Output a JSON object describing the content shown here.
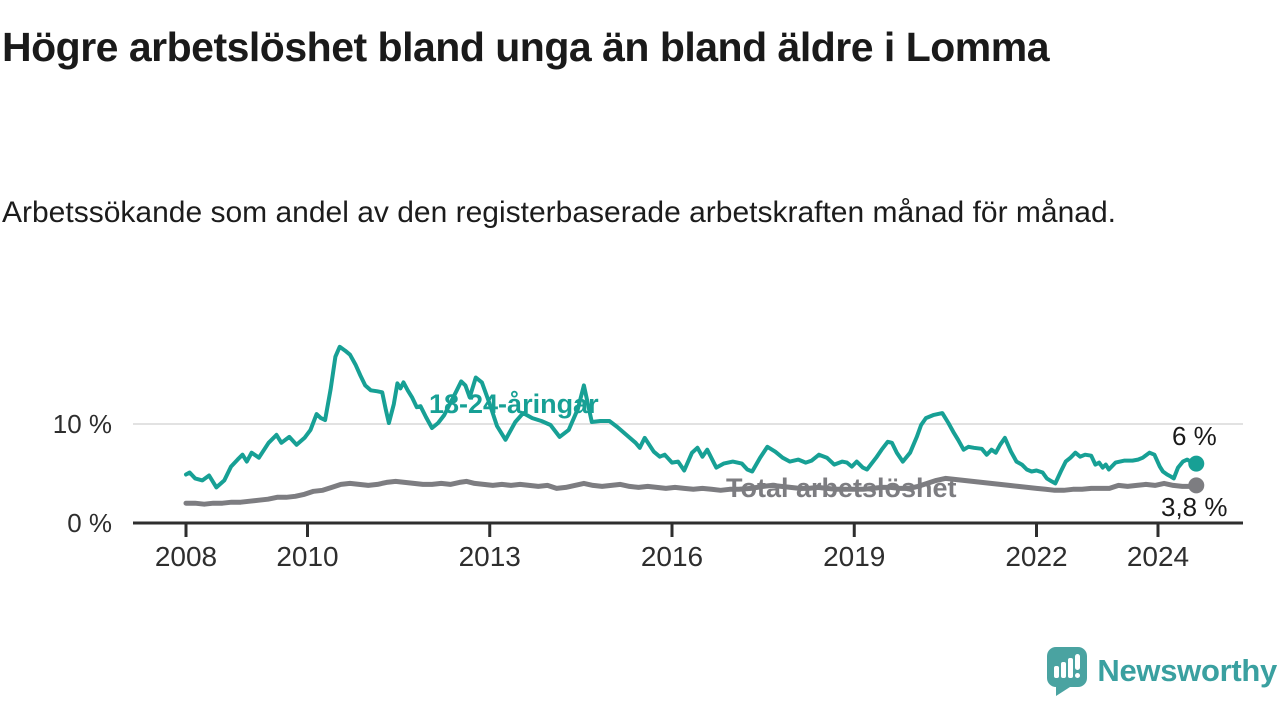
{
  "header": {
    "title": "Högre arbetslöshet bland unga än bland äldre i Lomma",
    "subtitle": "Arbetssökande som andel av den registerbaserade arbetskraften månad för månad."
  },
  "chart_data": {
    "type": "line",
    "unit": "%",
    "grid": "horizontal-10pct-only",
    "legend_position": "inline-labels-on-lines",
    "axis_color": "#2e2e2e",
    "gridline_color": "#d9d9d9",
    "xlim": [
      2007.1,
      2025.4
    ],
    "ylim": [
      0,
      19.2
    ],
    "x_ticks": [
      {
        "value": 2008,
        "label": "2008"
      },
      {
        "value": 2010,
        "label": "2010"
      },
      {
        "value": 2013,
        "label": "2013"
      },
      {
        "value": 2016,
        "label": "2016"
      },
      {
        "value": 2019,
        "label": "2019"
      },
      {
        "value": 2022,
        "label": "2022"
      },
      {
        "value": 2024,
        "label": "2024"
      }
    ],
    "y_ticks": [
      {
        "value": 0,
        "label": "0 %"
      },
      {
        "value": 10,
        "label": "10 %"
      }
    ],
    "series": [
      {
        "name": "Total arbetslöshet",
        "color": "#7d7d81",
        "end_label": "3,8 %",
        "end_value": 3.8,
        "points": [
          [
            2008.0,
            2.0
          ],
          [
            2008.15,
            2.0
          ],
          [
            2008.3,
            1.9
          ],
          [
            2008.45,
            2.0
          ],
          [
            2008.6,
            2.0
          ],
          [
            2008.75,
            2.1
          ],
          [
            2008.9,
            2.1
          ],
          [
            2009.05,
            2.2
          ],
          [
            2009.2,
            2.3
          ],
          [
            2009.35,
            2.4
          ],
          [
            2009.5,
            2.6
          ],
          [
            2009.65,
            2.6
          ],
          [
            2009.8,
            2.7
          ],
          [
            2009.95,
            2.9
          ],
          [
            2010.1,
            3.2
          ],
          [
            2010.25,
            3.3
          ],
          [
            2010.4,
            3.6
          ],
          [
            2010.55,
            3.9
          ],
          [
            2010.7,
            4.0
          ],
          [
            2010.85,
            3.9
          ],
          [
            2011.0,
            3.8
          ],
          [
            2011.15,
            3.9
          ],
          [
            2011.3,
            4.1
          ],
          [
            2011.45,
            4.2
          ],
          [
            2011.6,
            4.1
          ],
          [
            2011.75,
            4.0
          ],
          [
            2011.9,
            3.9
          ],
          [
            2012.05,
            3.9
          ],
          [
            2012.2,
            4.0
          ],
          [
            2012.35,
            3.9
          ],
          [
            2012.5,
            4.1
          ],
          [
            2012.62,
            4.2
          ],
          [
            2012.75,
            4.0
          ],
          [
            2012.9,
            3.9
          ],
          [
            2013.05,
            3.8
          ],
          [
            2013.2,
            3.9
          ],
          [
            2013.35,
            3.8
          ],
          [
            2013.5,
            3.9
          ],
          [
            2013.65,
            3.8
          ],
          [
            2013.8,
            3.7
          ],
          [
            2013.95,
            3.8
          ],
          [
            2014.1,
            3.5
          ],
          [
            2014.25,
            3.6
          ],
          [
            2014.4,
            3.8
          ],
          [
            2014.55,
            4.0
          ],
          [
            2014.7,
            3.8
          ],
          [
            2014.85,
            3.7
          ],
          [
            2015.0,
            3.8
          ],
          [
            2015.15,
            3.9
          ],
          [
            2015.3,
            3.7
          ],
          [
            2015.45,
            3.6
          ],
          [
            2015.6,
            3.7
          ],
          [
            2015.75,
            3.6
          ],
          [
            2015.9,
            3.5
          ],
          [
            2016.05,
            3.6
          ],
          [
            2016.2,
            3.5
          ],
          [
            2016.35,
            3.4
          ],
          [
            2016.5,
            3.5
          ],
          [
            2016.65,
            3.4
          ],
          [
            2016.8,
            3.3
          ],
          [
            2016.95,
            3.4
          ],
          [
            2017.1,
            3.4
          ],
          [
            2017.3,
            3.5
          ],
          [
            2017.5,
            3.7
          ],
          [
            2017.65,
            3.8
          ],
          [
            2017.8,
            3.7
          ],
          [
            2017.95,
            3.6
          ],
          [
            2018.1,
            3.5
          ],
          [
            2018.25,
            3.5
          ],
          [
            2018.4,
            3.6
          ],
          [
            2018.55,
            3.5
          ],
          [
            2018.7,
            3.4
          ],
          [
            2018.85,
            3.4
          ],
          [
            2019.0,
            3.4
          ],
          [
            2019.15,
            3.4
          ],
          [
            2019.3,
            3.5
          ],
          [
            2019.45,
            3.6
          ],
          [
            2019.6,
            3.6
          ],
          [
            2019.75,
            3.5
          ],
          [
            2019.9,
            3.5
          ],
          [
            2020.05,
            3.7
          ],
          [
            2020.2,
            4.0
          ],
          [
            2020.35,
            4.3
          ],
          [
            2020.5,
            4.5
          ],
          [
            2020.65,
            4.4
          ],
          [
            2020.8,
            4.3
          ],
          [
            2020.95,
            4.2
          ],
          [
            2021.1,
            4.1
          ],
          [
            2021.25,
            4.0
          ],
          [
            2021.4,
            3.9
          ],
          [
            2021.55,
            3.8
          ],
          [
            2021.7,
            3.7
          ],
          [
            2021.85,
            3.6
          ],
          [
            2022.0,
            3.5
          ],
          [
            2022.15,
            3.4
          ],
          [
            2022.3,
            3.3
          ],
          [
            2022.45,
            3.3
          ],
          [
            2022.6,
            3.4
          ],
          [
            2022.75,
            3.4
          ],
          [
            2022.9,
            3.5
          ],
          [
            2023.05,
            3.5
          ],
          [
            2023.2,
            3.5
          ],
          [
            2023.35,
            3.8
          ],
          [
            2023.5,
            3.7
          ],
          [
            2023.65,
            3.8
          ],
          [
            2023.8,
            3.9
          ],
          [
            2023.95,
            3.8
          ],
          [
            2024.1,
            4.0
          ],
          [
            2024.25,
            3.8
          ],
          [
            2024.4,
            3.7
          ],
          [
            2024.52,
            3.7
          ],
          [
            2024.63,
            3.8
          ]
        ]
      },
      {
        "name": "18-24-åringar",
        "color": "#17a095",
        "end_label": "6 %",
        "end_value": 6.0,
        "points": [
          [
            2008.0,
            4.9
          ],
          [
            2008.06,
            5.1
          ],
          [
            2008.15,
            4.5
          ],
          [
            2008.27,
            4.3
          ],
          [
            2008.38,
            4.8
          ],
          [
            2008.5,
            3.6
          ],
          [
            2008.63,
            4.3
          ],
          [
            2008.74,
            5.7
          ],
          [
            2008.85,
            6.4
          ],
          [
            2008.93,
            6.9
          ],
          [
            2009.0,
            6.2
          ],
          [
            2009.08,
            7.1
          ],
          [
            2009.2,
            6.6
          ],
          [
            2009.36,
            8.1
          ],
          [
            2009.49,
            8.9
          ],
          [
            2009.57,
            8.1
          ],
          [
            2009.7,
            8.7
          ],
          [
            2009.82,
            7.9
          ],
          [
            2009.95,
            8.6
          ],
          [
            2010.05,
            9.4
          ],
          [
            2010.15,
            11.0
          ],
          [
            2010.22,
            10.6
          ],
          [
            2010.29,
            10.4
          ],
          [
            2010.38,
            13.5
          ],
          [
            2010.46,
            16.8
          ],
          [
            2010.53,
            17.8
          ],
          [
            2010.62,
            17.4
          ],
          [
            2010.7,
            17.0
          ],
          [
            2010.79,
            16.0
          ],
          [
            2010.87,
            14.9
          ],
          [
            2010.95,
            13.9
          ],
          [
            2011.04,
            13.4
          ],
          [
            2011.15,
            13.3
          ],
          [
            2011.23,
            13.2
          ],
          [
            2011.29,
            11.4
          ],
          [
            2011.34,
            10.1
          ],
          [
            2011.42,
            12.0
          ],
          [
            2011.48,
            14.1
          ],
          [
            2011.53,
            13.6
          ],
          [
            2011.58,
            14.2
          ],
          [
            2011.65,
            13.4
          ],
          [
            2011.72,
            12.7
          ],
          [
            2011.8,
            11.7
          ],
          [
            2011.86,
            11.8
          ],
          [
            2011.95,
            10.7
          ],
          [
            2012.05,
            9.6
          ],
          [
            2012.15,
            10.1
          ],
          [
            2012.25,
            10.9
          ],
          [
            2012.35,
            12.1
          ],
          [
            2012.45,
            13.3
          ],
          [
            2012.53,
            14.3
          ],
          [
            2012.6,
            13.9
          ],
          [
            2012.67,
            12.7
          ],
          [
            2012.77,
            14.7
          ],
          [
            2012.87,
            14.2
          ],
          [
            2013.0,
            12.0
          ],
          [
            2013.12,
            9.8
          ],
          [
            2013.26,
            8.4
          ],
          [
            2013.42,
            10.2
          ],
          [
            2013.55,
            11.1
          ],
          [
            2013.7,
            10.6
          ],
          [
            2013.85,
            10.3
          ],
          [
            2014.0,
            9.9
          ],
          [
            2014.15,
            8.7
          ],
          [
            2014.3,
            9.4
          ],
          [
            2014.45,
            11.5
          ],
          [
            2014.55,
            13.9
          ],
          [
            2014.68,
            10.2
          ],
          [
            2014.82,
            10.3
          ],
          [
            2014.97,
            10.3
          ],
          [
            2015.1,
            9.7
          ],
          [
            2015.25,
            8.9
          ],
          [
            2015.4,
            8.1
          ],
          [
            2015.47,
            7.6
          ],
          [
            2015.55,
            8.6
          ],
          [
            2015.7,
            7.2
          ],
          [
            2015.8,
            6.7
          ],
          [
            2015.88,
            6.9
          ],
          [
            2016.0,
            6.1
          ],
          [
            2016.1,
            6.2
          ],
          [
            2016.2,
            5.3
          ],
          [
            2016.33,
            7.1
          ],
          [
            2016.42,
            7.6
          ],
          [
            2016.5,
            6.7
          ],
          [
            2016.58,
            7.4
          ],
          [
            2016.73,
            5.6
          ],
          [
            2016.85,
            6.0
          ],
          [
            2017.0,
            6.2
          ],
          [
            2017.15,
            6.0
          ],
          [
            2017.24,
            5.4
          ],
          [
            2017.32,
            5.2
          ],
          [
            2017.45,
            6.6
          ],
          [
            2017.57,
            7.7
          ],
          [
            2017.7,
            7.2
          ],
          [
            2017.82,
            6.6
          ],
          [
            2017.94,
            6.2
          ],
          [
            2018.08,
            6.4
          ],
          [
            2018.2,
            6.1
          ],
          [
            2018.3,
            6.3
          ],
          [
            2018.42,
            6.9
          ],
          [
            2018.55,
            6.6
          ],
          [
            2018.67,
            5.9
          ],
          [
            2018.8,
            6.2
          ],
          [
            2018.88,
            6.1
          ],
          [
            2018.96,
            5.7
          ],
          [
            2019.04,
            6.2
          ],
          [
            2019.14,
            5.6
          ],
          [
            2019.21,
            5.4
          ],
          [
            2019.36,
            6.6
          ],
          [
            2019.45,
            7.4
          ],
          [
            2019.55,
            8.2
          ],
          [
            2019.62,
            8.1
          ],
          [
            2019.7,
            7.1
          ],
          [
            2019.8,
            6.2
          ],
          [
            2019.92,
            7.1
          ],
          [
            2020.03,
            8.7
          ],
          [
            2020.1,
            9.9
          ],
          [
            2020.18,
            10.6
          ],
          [
            2020.3,
            10.9
          ],
          [
            2020.45,
            11.1
          ],
          [
            2020.55,
            10.1
          ],
          [
            2020.63,
            9.2
          ],
          [
            2020.71,
            8.4
          ],
          [
            2020.8,
            7.4
          ],
          [
            2020.88,
            7.7
          ],
          [
            2020.97,
            7.6
          ],
          [
            2021.1,
            7.5
          ],
          [
            2021.18,
            6.9
          ],
          [
            2021.26,
            7.4
          ],
          [
            2021.33,
            7.1
          ],
          [
            2021.4,
            7.9
          ],
          [
            2021.48,
            8.6
          ],
          [
            2021.58,
            7.2
          ],
          [
            2021.67,
            6.2
          ],
          [
            2021.76,
            5.9
          ],
          [
            2021.84,
            5.4
          ],
          [
            2021.92,
            5.2
          ],
          [
            2022.0,
            5.3
          ],
          [
            2022.1,
            5.1
          ],
          [
            2022.17,
            4.5
          ],
          [
            2022.25,
            4.2
          ],
          [
            2022.31,
            4.0
          ],
          [
            2022.4,
            5.2
          ],
          [
            2022.48,
            6.2
          ],
          [
            2022.56,
            6.6
          ],
          [
            2022.64,
            7.1
          ],
          [
            2022.72,
            6.7
          ],
          [
            2022.8,
            6.9
          ],
          [
            2022.9,
            6.8
          ],
          [
            2022.97,
            5.9
          ],
          [
            2023.03,
            6.1
          ],
          [
            2023.09,
            5.6
          ],
          [
            2023.14,
            5.9
          ],
          [
            2023.19,
            5.4
          ],
          [
            2023.3,
            6.1
          ],
          [
            2023.45,
            6.3
          ],
          [
            2023.58,
            6.3
          ],
          [
            2023.67,
            6.4
          ],
          [
            2023.75,
            6.6
          ],
          [
            2023.86,
            7.1
          ],
          [
            2023.94,
            6.9
          ],
          [
            2024.03,
            5.7
          ],
          [
            2024.08,
            5.2
          ],
          [
            2024.15,
            4.9
          ],
          [
            2024.21,
            4.7
          ],
          [
            2024.26,
            4.5
          ],
          [
            2024.33,
            5.6
          ],
          [
            2024.41,
            6.2
          ],
          [
            2024.48,
            6.4
          ],
          [
            2024.56,
            6.1
          ],
          [
            2024.63,
            6.0
          ]
        ]
      }
    ]
  },
  "footer": {
    "brand": "Newsworthy",
    "brand_color": "#3aa0a0",
    "logo_bubble_color": "#4aa3a1"
  }
}
